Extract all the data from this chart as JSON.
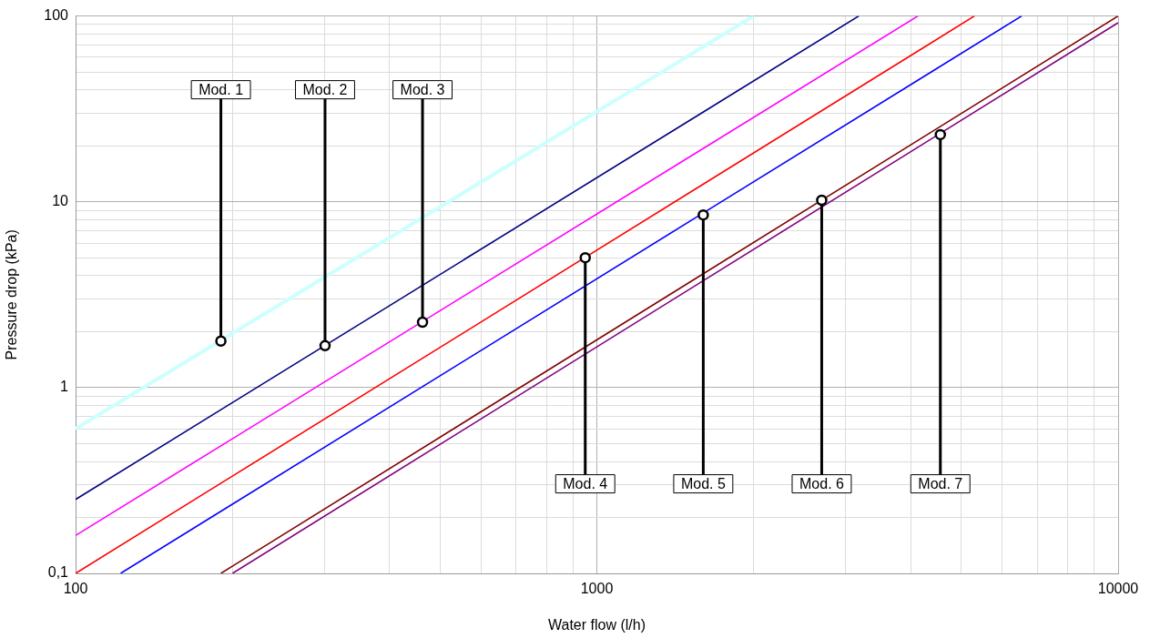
{
  "chart_data": {
    "type": "line",
    "xlabel": "Water flow (l/h)",
    "ylabel": "Pressure drop (kPa)",
    "log": "xy",
    "grid": true,
    "legend": false,
    "xlim": [
      100,
      10000
    ],
    "ylim": [
      0.1,
      100
    ],
    "xticks": [
      100,
      {
        "value": 200,
        "label": null
      },
      {
        "value": 300,
        "label": null
      },
      {
        "value": 400,
        "label": null
      },
      {
        "value": 500,
        "label": null
      },
      {
        "value": 600,
        "label": null
      },
      {
        "value": 700,
        "label": null
      },
      {
        "value": 800,
        "label": null
      },
      {
        "value": 900,
        "label": null
      },
      1000,
      {
        "value": 2000,
        "label": null
      },
      {
        "value": 3000,
        "label": null
      },
      {
        "value": 4000,
        "label": null
      },
      {
        "value": 5000,
        "label": null
      },
      {
        "value": 6000,
        "label": null
      },
      {
        "value": 7000,
        "label": null
      },
      {
        "value": 8000,
        "label": null
      },
      {
        "value": 9000,
        "label": null
      },
      10000
    ],
    "yticks": [
      {
        "value": 0.1,
        "label": "0,1"
      },
      {
        "value": 0.2,
        "label": null
      },
      {
        "value": 0.3,
        "label": null
      },
      {
        "value": 0.4,
        "label": null
      },
      {
        "value": 0.5,
        "label": null
      },
      {
        "value": 0.6,
        "label": null
      },
      {
        "value": 0.7,
        "label": null
      },
      {
        "value": 0.8,
        "label": null
      },
      {
        "value": 0.9,
        "label": null
      },
      1,
      {
        "value": 2,
        "label": null
      },
      {
        "value": 3,
        "label": null
      },
      {
        "value": 4,
        "label": null
      },
      {
        "value": 5,
        "label": null
      },
      {
        "value": 6,
        "label": null
      },
      {
        "value": 7,
        "label": null
      },
      {
        "value": 8,
        "label": null
      },
      {
        "value": 9,
        "label": null
      },
      10,
      {
        "value": 20,
        "label": null
      },
      {
        "value": 30,
        "label": null
      },
      {
        "value": 40,
        "label": null
      },
      {
        "value": 50,
        "label": null
      },
      {
        "value": 60,
        "label": null
      },
      {
        "value": 70,
        "label": null
      },
      {
        "value": 80,
        "label": null
      },
      {
        "value": 90,
        "label": null
      },
      100
    ],
    "series": [
      {
        "color": "#ccffff",
        "x": [
          100,
          2000
        ],
        "values": [
          0.6,
          100
        ]
      },
      {
        "color": "#000080",
        "x": [
          100,
          3180
        ],
        "values": [
          0.25,
          100
        ]
      },
      {
        "color": "#ff00ff",
        "x": [
          100,
          4130
        ],
        "values": [
          0.16,
          100
        ]
      },
      {
        "color": "#ff0000",
        "x": [
          100,
          5300
        ],
        "values": [
          0.1,
          100
        ]
      },
      {
        "color": "#0000ff",
        "x": [
          122,
          6530
        ],
        "values": [
          0.1,
          100
        ]
      },
      {
        "color": "#800000",
        "x": [
          190,
          10000
        ],
        "values": [
          0.1,
          100
        ]
      },
      {
        "color": "#800080",
        "x": [
          200,
          10000
        ],
        "values": [
          0.1,
          92
        ]
      }
    ],
    "annotations": [
      {
        "text": "Mod. 1",
        "x": 190,
        "y": 1.78
      },
      {
        "text": "Mod. 2",
        "x": 301,
        "y": 1.68
      },
      {
        "text": "Mod. 3",
        "x": 463,
        "y": 2.25
      },
      {
        "text": "Mod. 4",
        "x": 950,
        "y": 5
      },
      {
        "text": "Mod. 5",
        "x": 1600,
        "y": 8.5
      },
      {
        "text": "Mod. 6",
        "x": 2700,
        "y": 10.2
      },
      {
        "text": "Mod. 7",
        "x": 4560,
        "y": 23
      }
    ]
  }
}
